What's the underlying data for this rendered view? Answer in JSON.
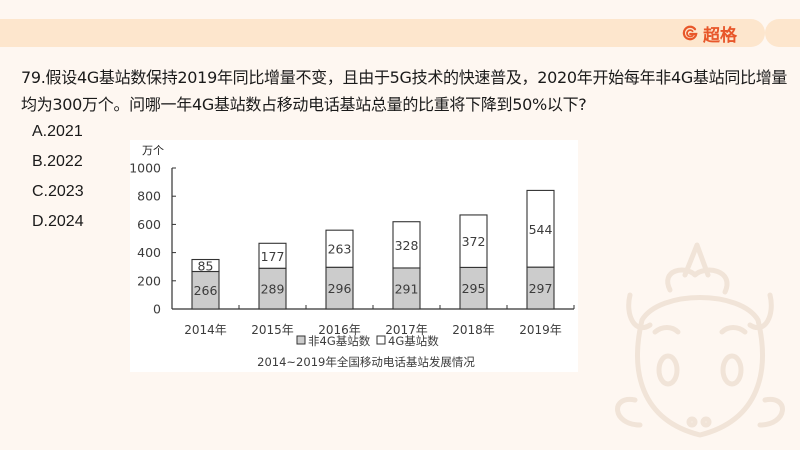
{
  "header": {
    "brand_name": "超格",
    "brand_icon": "brand-g-icon",
    "brand_color": "#e8572a",
    "band_color": "#fde6cd"
  },
  "question": {
    "text": "79.假设4G基站数保持2019年同比增量不变，且由于5G技术的快速普及，2020年开始每年非4G基站同比增量均为300万个。问哪一年4G基站数占移动电话基站总量的比重将下降到50%以下?",
    "options": [
      {
        "label": "A.2021"
      },
      {
        "label": "B.2022"
      },
      {
        "label": "C.2023"
      },
      {
        "label": "D.2024"
      }
    ]
  },
  "chart_data": {
    "type": "bar",
    "stacked": true,
    "title": "2014~2019年全国移动电话基站发展情况",
    "ylabel": "万个",
    "xlabel": "",
    "ylim": [
      0,
      1000
    ],
    "yticks": [
      "0",
      "200",
      "400",
      "600",
      "800",
      "1000"
    ],
    "categories": [
      "2014年",
      "2015年",
      "2016年",
      "2017年",
      "2018年",
      "2019年"
    ],
    "series": [
      {
        "name": "非4G基站数",
        "color": "#cccccc",
        "values": [
          266,
          289,
          296,
          291,
          295,
          297
        ]
      },
      {
        "name": "4G基站数",
        "color": "#ffffff",
        "values": [
          85,
          177,
          263,
          328,
          372,
          544
        ]
      }
    ],
    "legend_position": "bottom",
    "grid": false
  }
}
